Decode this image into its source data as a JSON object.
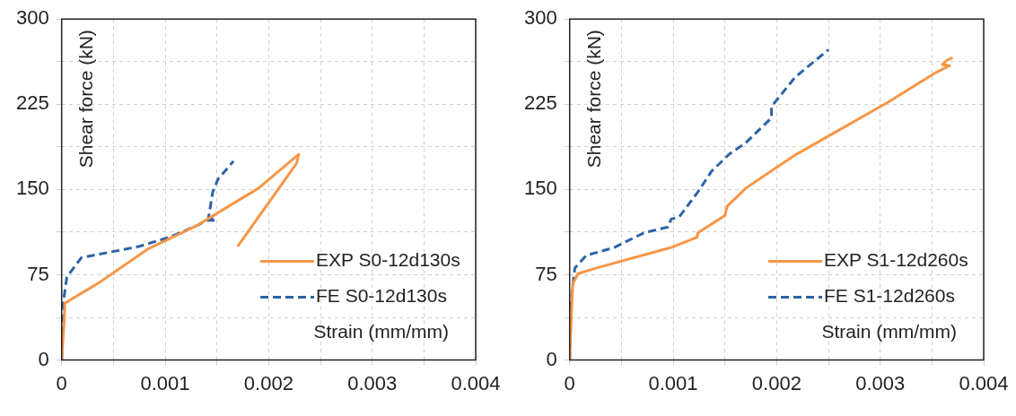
{
  "chart_data": [
    {
      "type": "line",
      "xlabel": "Strain (mm/mm)",
      "ylabel": "Shear force (kN)",
      "xlim": [
        0,
        0.004
      ],
      "ylim": [
        0,
        300
      ],
      "xticks": [
        0,
        {
          "value": 0.0005,
          "label": null
        },
        0.001,
        {
          "value": 0.0015,
          "label": null
        },
        0.002,
        {
          "value": 0.0025,
          "label": null
        },
        0.003,
        {
          "value": 0.0035,
          "label": null
        },
        0.004
      ],
      "yticks": [
        0,
        {
          "value": 37.5,
          "label": null
        },
        75,
        {
          "value": 112.5,
          "label": null
        },
        150,
        {
          "value": 187.5,
          "label": null
        },
        225,
        {
          "value": 262.5,
          "label": null
        },
        300
      ],
      "grid": true,
      "legend": "bottom right",
      "marker": "none",
      "series": [
        {
          "name": "EXP S0-12d130s",
          "color": "#f79646",
          "line_style": "solid",
          "x": [
            0,
            2.6e-05,
            3e-05,
            0.00036,
            0.00084,
            0.0013,
            0.0019,
            0.00229,
            0.00227,
            0.0017
          ],
          "values": [
            0,
            37,
            50,
            68,
            98,
            118,
            151,
            181,
            173,
            100
          ]
        },
        {
          "name": "FE S0-12d130s",
          "color": "#2e63a6",
          "line_style": "dashed",
          "x": [
            0,
            1.6e-05,
            5e-05,
            0.00019,
            0.00075,
            0.00104,
            0.0013,
            0.00141,
            0.00149,
            0.00142,
            0.00146,
            0.00151,
            0.00166
          ],
          "values": [
            0,
            51,
            73,
            90,
            100,
            108,
            118,
            123,
            123,
            126,
            148,
            159,
            175
          ]
        }
      ]
    },
    {
      "type": "line",
      "xlabel": "Strain (mm/mm)",
      "ylabel": "Shear force (kN)",
      "xlim": [
        0,
        0.004
      ],
      "ylim": [
        0,
        300
      ],
      "xticks": [
        0,
        {
          "value": 0.0005,
          "label": null
        },
        0.001,
        {
          "value": 0.0015,
          "label": null
        },
        0.002,
        {
          "value": 0.0025,
          "label": null
        },
        0.003,
        {
          "value": 0.0035,
          "label": null
        },
        0.004
      ],
      "yticks": [
        0,
        {
          "value": 37.5,
          "label": null
        },
        75,
        {
          "value": 112.5,
          "label": null
        },
        150,
        {
          "value": 187.5,
          "label": null
        },
        225,
        {
          "value": 262.5,
          "label": null
        },
        300
      ],
      "grid": true,
      "legend": "bottom right",
      "marker": "none",
      "series": [
        {
          "name": "EXP S1-12d260s",
          "color": "#f79646",
          "line_style": "solid",
          "x": [
            0,
            1.6e-05,
            3e-05,
            8e-05,
            0.00026,
            0.00098,
            0.00123,
            0.00124,
            0.0015,
            0.00152,
            0.0017,
            0.00196,
            0.00219,
            0.00308,
            0.00354,
            0.00367,
            0.0036,
            0.00365,
            0.0037
          ],
          "values": [
            0,
            39,
            67,
            76,
            81,
            99,
            108,
            112,
            127,
            135,
            151,
            167,
            181,
            227,
            253,
            259,
            260,
            264,
            266
          ]
        },
        {
          "name": "FE S1-12d260s",
          "color": "#2e63a6",
          "line_style": "dashed",
          "x": [
            0,
            1.6e-05,
            5e-05,
            0.00016,
            0.00043,
            0.00072,
            0.00095,
            0.00098,
            0.00106,
            0.00124,
            0.00137,
            0.00154,
            0.0017,
            0.00195,
            0.00195,
            0.00218,
            0.0025
          ],
          "values": [
            0,
            53,
            81,
            92,
            99,
            112,
            117,
            124,
            126,
            148,
            166,
            181,
            191,
            213,
            223,
            249,
            273
          ]
        }
      ]
    }
  ]
}
